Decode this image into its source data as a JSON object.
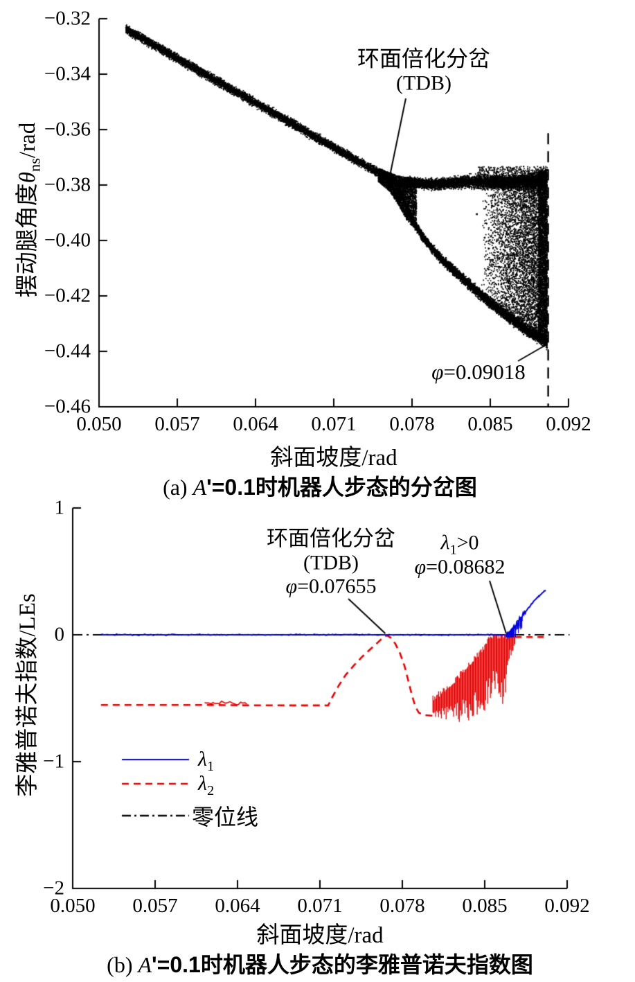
{
  "figure": {
    "a": {
      "ylabel_cn": "摆动腿角度",
      "ylabel_theta": "θ",
      "ylabel_sub": "ns",
      "ylabel_unit": "/rad",
      "xlabel": "斜面坡度/rad",
      "cap_prefix": "(a) ",
      "cap_var": "A",
      "cap_rest": "'=0.1时机器人步态的分岔图",
      "ann_tdb1": "环面倍化分岔",
      "ann_tdb2": "(TDB)",
      "ann_phi_sym": "φ",
      "ann_phi_val": "=0.09018"
    },
    "b": {
      "ylabel_cn": "李雅普诺夫指数",
      "ylabel_unit": "/LEs",
      "xlabel": "斜面坡度/rad",
      "cap_prefix": "(b) ",
      "cap_var": "A",
      "cap_rest": "'=0.1时机器人步态的李雅普诺夫指数图",
      "ann_tdb1": "环面倍化分岔",
      "ann_tdb2": "(TDB)",
      "ann_tdb_sym": "φ",
      "ann_tdb_val": "=0.07655",
      "ann_l1_sym": "λ",
      "ann_l1_sub": "1",
      "ann_l1_rest": ">0",
      "ann_l1b_sym": "φ",
      "ann_l1b_val": "=0.08682",
      "leg1_sym": "λ",
      "leg1_sub": "1",
      "leg2_sym": "λ",
      "leg2_sub": "2",
      "leg3": "零位线"
    }
  },
  "chart_data": [
    {
      "id": "bifurcation-diagram",
      "type": "scatter",
      "title": "(a) A'=0.1时机器人步态的分岔图",
      "xlabel": "斜面坡度/rad",
      "ylabel": "摆动腿角度θns/rad",
      "xlim": [
        0.05,
        0.092
      ],
      "ylim": [
        -0.46,
        -0.32
      ],
      "xticks": [
        "0.050",
        "0.057",
        "0.064",
        "0.071",
        "0.078",
        "0.085",
        "0.092"
      ],
      "xtick_vals": [
        0.05,
        0.057,
        0.064,
        0.071,
        0.078,
        0.085,
        0.092
      ],
      "yticks": [
        "−0.32",
        "−0.34",
        "−0.36",
        "−0.38",
        "−0.40",
        "−0.42",
        "−0.44",
        "−0.46"
      ],
      "ytick_vals": [
        -0.32,
        -0.34,
        -0.36,
        -0.38,
        -0.4,
        -0.42,
        -0.44,
        -0.46
      ],
      "point_color": "#000000",
      "vline": {
        "x": 0.09018,
        "style": "dashed",
        "y_top": -0.3613,
        "y_bottom": -0.46,
        "label": "φ=0.09018"
      },
      "annotations": [
        {
          "lines": [
            "环面倍化分岔",
            "(TDB)"
          ],
          "points_to": [
            0.076,
            -0.377
          ]
        },
        {
          "lines": [
            "φ=0.09018"
          ],
          "points_to": [
            0.09018,
            -0.4375
          ]
        }
      ],
      "segments": {
        "main_band": {
          "x_range": [
            0.0524,
            0.0768
          ],
          "y_start": -0.3238,
          "y_end": -0.3797,
          "half_width": 0.0016,
          "n": 6500
        },
        "top_branch": {
          "centers": [
            [
              0.0768,
              -0.379
            ],
            [
              0.08,
              -0.3797
            ],
            [
              0.083,
              -0.3788
            ],
            [
              0.086,
              -0.3792
            ],
            [
              0.0901,
              -0.379
            ]
          ],
          "hw0": 0.0017,
          "hw1": 0.0028,
          "n": 4800,
          "up_stray": {
            "x_range": [
              0.0838,
              0.0901
            ],
            "y_top": -0.3733,
            "n": 900
          }
        },
        "lower_arc": {
          "centers": [
            [
              0.0768,
              -0.38
            ],
            [
              0.0771,
              -0.384
            ],
            [
              0.0777,
              -0.39
            ],
            [
              0.0785,
              -0.396
            ],
            [
              0.0794,
              -0.401
            ],
            [
              0.0808,
              -0.4075
            ],
            [
              0.0826,
              -0.414
            ],
            [
              0.0847,
              -0.4215
            ],
            [
              0.0868,
              -0.428
            ],
            [
              0.0884,
              -0.4327
            ],
            [
              0.0901,
              -0.4366
            ]
          ],
          "hw0": 0.0014,
          "hw1": 0.0022,
          "n": 5400
        },
        "junction": {
          "x_range": [
            0.075,
            0.0784
          ],
          "top": [
            [
              0.075,
              -0.374
            ],
            [
              0.0768,
              -0.3768
            ],
            [
              0.0784,
              -0.3775
            ]
          ],
          "bottom": [
            [
              0.075,
              -0.3788
            ],
            [
              0.076,
              -0.3822
            ],
            [
              0.0768,
              -0.3872
            ],
            [
              0.0776,
              -0.3932
            ],
            [
              0.0784,
              -0.3962
            ]
          ],
          "n": 2700
        },
        "chaos": {
          "x_range": [
            0.0842,
            0.0901
          ],
          "y_top_start": -0.379,
          "y_top_end": -0.3745,
          "power": 0.5,
          "n": 5600
        },
        "right_strip": {
          "x_range": [
            0.0893,
            0.0901
          ],
          "y_top": -0.3745,
          "y_bottom": -0.436,
          "n": 2300
        },
        "hole_specks": [
          [
            0.0838,
            -0.3905
          ],
          [
            0.0852,
            -0.407
          ],
          [
            0.0858,
            -0.4095
          ],
          [
            0.0845,
            -0.399
          ]
        ]
      }
    },
    {
      "id": "lyapunov-exponents",
      "type": "line",
      "title": "(b) A'=0.1时机器人步态的李雅普诺夫指数图",
      "xlabel": "斜面坡度/rad",
      "ylabel": "李雅普诺夫指数/LEs",
      "xlim": [
        0.05,
        0.092
      ],
      "ylim": [
        -2,
        1
      ],
      "xticks": [
        "0.050",
        "0.057",
        "0.064",
        "0.071",
        "0.078",
        "0.085",
        "0.092"
      ],
      "xtick_vals": [
        0.05,
        0.057,
        0.064,
        0.071,
        0.078,
        0.085,
        0.092
      ],
      "yticks": [
        "1",
        "0",
        "−1",
        "−2"
      ],
      "ytick_vals": [
        1,
        0,
        -1,
        -2
      ],
      "zero_line": {
        "label": "零位线",
        "style": "dash-dot",
        "color": "#000000",
        "x_range": [
          0.05,
          0.0922
        ],
        "y": 0
      },
      "series": [
        {
          "name": "λ1",
          "color": "#0000e0",
          "style": "solid",
          "flat": {
            "x_range": [
              0.0524,
              0.08682
            ],
            "y": 0,
            "noise": 0.008
          },
          "rise": [
            [
              0.08682,
              0
            ],
            [
              0.0872,
              0.03
            ],
            [
              0.0876,
              0.075
            ],
            [
              0.088,
              0.125
            ],
            [
              0.0884,
              0.175
            ],
            [
              0.0888,
              0.22
            ],
            [
              0.0892,
              0.265
            ],
            [
              0.0896,
              0.305
            ],
            [
              0.09,
              0.34
            ],
            [
              0.0902,
              0.352
            ]
          ],
          "rise_noise": 0.02,
          "crossing": 0.08682
        },
        {
          "name": "λ2",
          "color": "#e60000",
          "style": "dashed",
          "path": [
            [
              0.0524,
              -0.553
            ],
            [
              0.061,
              -0.553
            ],
            [
              0.065,
              -0.556
            ],
            [
              0.0717,
              -0.557
            ],
            [
              0.072,
              -0.5
            ],
            [
              0.0726,
              -0.4
            ],
            [
              0.0732,
              -0.315
            ],
            [
              0.0739,
              -0.24
            ],
            [
              0.0746,
              -0.172
            ],
            [
              0.0753,
              -0.112
            ],
            [
              0.0759,
              -0.062
            ],
            [
              0.0764,
              -0.018
            ],
            [
              0.0767,
              -0.005
            ],
            [
              0.077,
              -0.022
            ],
            [
              0.0774,
              -0.07
            ],
            [
              0.0778,
              -0.145
            ],
            [
              0.0782,
              -0.25
            ],
            [
              0.0785,
              -0.36
            ],
            [
              0.0788,
              -0.47
            ],
            [
              0.0791,
              -0.565
            ],
            [
              0.0794,
              -0.615
            ],
            [
              0.0799,
              -0.633
            ],
            [
              0.0806,
              -0.638
            ]
          ],
          "glitch": {
            "x_range": [
              0.0612,
              0.0648
            ],
            "amp": 0.03,
            "y": -0.553
          },
          "noise_band": {
            "x_range": [
              0.0806,
              0.0876
            ],
            "top": [
              [
                0.0806,
                -0.5
              ],
              [
                0.0815,
                -0.44
              ],
              [
                0.0825,
                -0.355
              ],
              [
                0.0835,
                -0.255
              ],
              [
                0.0845,
                -0.15
              ],
              [
                0.0852,
                -0.055
              ],
              [
                0.0857,
                -0.005
              ],
              [
                0.0876,
                -0.005
              ]
            ],
            "bottom": [
              [
                0.0806,
                -0.655
              ],
              [
                0.082,
                -0.685
              ],
              [
                0.0832,
                -0.7
              ],
              [
                0.0842,
                -0.655
              ],
              [
                0.085,
                -0.615
              ],
              [
                0.0856,
                -0.52
              ],
              [
                0.0861,
                -0.42
              ],
              [
                0.0864,
                -0.55
              ],
              [
                0.0866,
                -0.67
              ],
              [
                0.0869,
                -0.3
              ],
              [
                0.0872,
                -0.18
              ],
              [
                0.0876,
                -0.1
              ]
            ]
          },
          "tail": {
            "x_range": [
              0.0876,
              0.0902
            ],
            "y": -0.018
          },
          "tdb_crossing": 0.07655
        }
      ],
      "legend": [
        {
          "label": "λ1",
          "color": "#0000e0",
          "style": "solid"
        },
        {
          "label": "λ2",
          "color": "#e60000",
          "style": "dashed"
        },
        {
          "label": "零位线",
          "color": "#000000",
          "style": "dash-dot"
        }
      ],
      "annotations": [
        {
          "lines": [
            "环面倍化分岔",
            "(TDB)",
            "φ=0.07655"
          ],
          "points_to": [
            0.07655,
            0
          ]
        },
        {
          "lines": [
            "λ1>0",
            "φ=0.08682"
          ],
          "points_to": [
            0.08682,
            0
          ]
        }
      ]
    }
  ]
}
